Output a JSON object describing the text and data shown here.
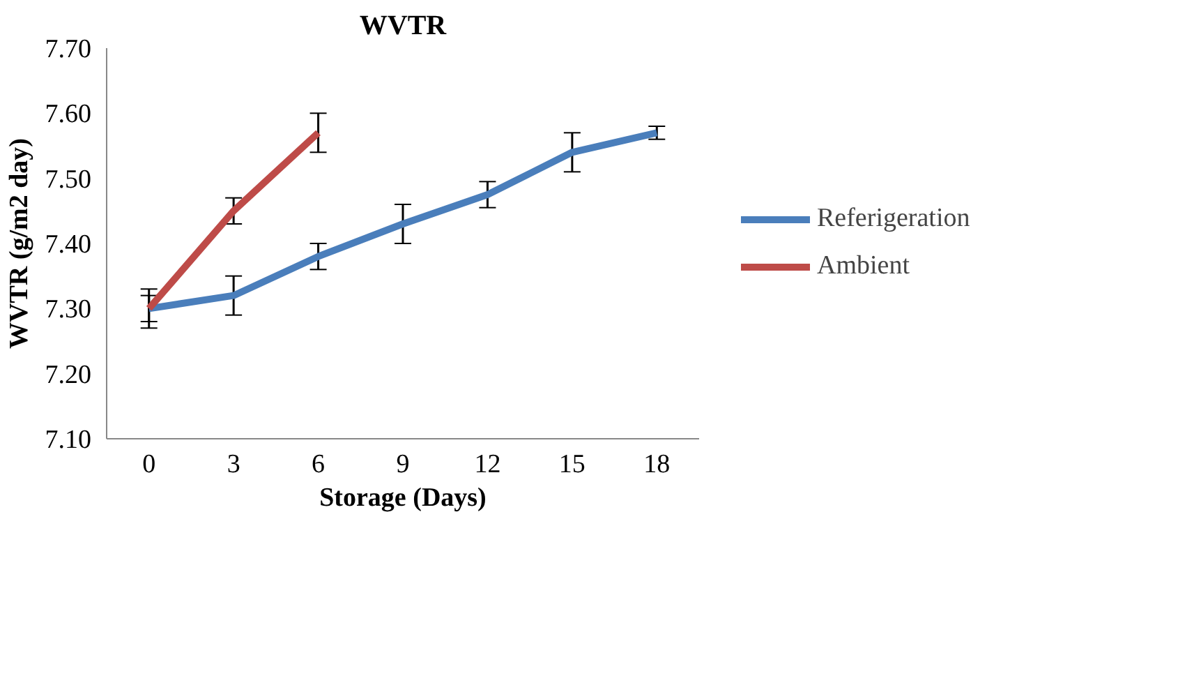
{
  "chart_data": {
    "type": "line",
    "title": "WVTR",
    "xlabel": "Storage (Days)",
    "ylabel": "WVTR (g/m2 day)",
    "categories": [
      "0",
      "3",
      "6",
      "9",
      "12",
      "15",
      "18"
    ],
    "series": [
      {
        "name": "Referigeration",
        "color": "#4a7ebb",
        "values": [
          7.3,
          7.32,
          7.38,
          7.43,
          7.475,
          7.54,
          7.57
        ],
        "errors": [
          0.02,
          0.03,
          0.02,
          0.03,
          0.02,
          0.03,
          0.01
        ]
      },
      {
        "name": "Ambient",
        "color": "#be4b48",
        "values": [
          7.3,
          7.45,
          7.57,
          null,
          null,
          null,
          null
        ],
        "errors": [
          0.03,
          0.02,
          0.03,
          null,
          null,
          null,
          null
        ]
      }
    ],
    "ylim": [
      7.1,
      7.7
    ],
    "yticks": [
      {
        "value": 7.1,
        "label": "7.10"
      },
      {
        "value": 7.2,
        "label": "7.20"
      },
      {
        "value": 7.3,
        "label": "7.30"
      },
      {
        "value": 7.4,
        "label": "7.40"
      },
      {
        "value": 7.5,
        "label": "7.50"
      },
      {
        "value": 7.6,
        "label": "7.60"
      },
      {
        "value": 7.7,
        "label": "7.70"
      }
    ],
    "grid": false,
    "legend": "right",
    "marker": "none",
    "line_style": "solid"
  }
}
